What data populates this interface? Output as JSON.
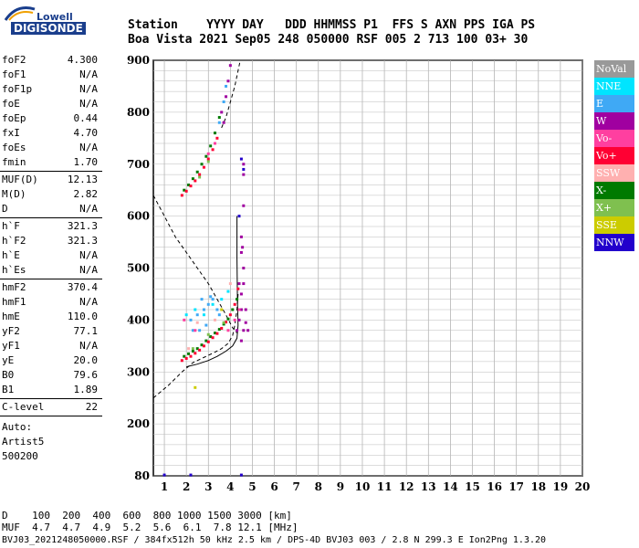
{
  "logo": {
    "top": "Lowell",
    "bottom": "DIGISONDE"
  },
  "header": {
    "line1": "Station    YYYY DAY   DDD HHMMSS P1  FFS S AXN PPS IGA PS",
    "line2": "Boa Vista 2021 Sep05 248 050000 RSF 005 2 713 100 03+ 30"
  },
  "params": [
    {
      "name": "foF2",
      "value": "4.300"
    },
    {
      "name": "foF1",
      "value": "N/A"
    },
    {
      "name": "foF1p",
      "value": "N/A"
    },
    {
      "name": "foE",
      "value": "N/A"
    },
    {
      "name": "foEp",
      "value": "0.44"
    },
    {
      "name": "fxI",
      "value": "4.70"
    },
    {
      "name": "foEs",
      "value": "N/A"
    },
    {
      "name": "fmin",
      "value": "1.70"
    },
    {
      "sep": true
    },
    {
      "name": "MUF(D)",
      "value": "12.13"
    },
    {
      "name": "M(D)",
      "value": "2.82"
    },
    {
      "name": "D",
      "value": "N/A"
    },
    {
      "sep": true
    },
    {
      "name": "h`F",
      "value": "321.3"
    },
    {
      "name": "h`F2",
      "value": "321.3"
    },
    {
      "name": "h`E",
      "value": "N/A"
    },
    {
      "name": "h`Es",
      "value": "N/A"
    },
    {
      "sep": true
    },
    {
      "name": "hmF2",
      "value": "370.4"
    },
    {
      "name": "hmF1",
      "value": "N/A"
    },
    {
      "name": "hmE",
      "value": "110.0"
    },
    {
      "name": "yF2",
      "value": "77.1"
    },
    {
      "name": "yF1",
      "value": "N/A"
    },
    {
      "name": "yE",
      "value": "20.0"
    },
    {
      "name": "B0",
      "value": "79.6"
    },
    {
      "name": "B1",
      "value": "1.89"
    },
    {
      "sep": true
    },
    {
      "name": "C-level",
      "value": "22"
    },
    {
      "sep": true
    }
  ],
  "auto": {
    "line1": "Auto:",
    "line2": "Artist5",
    "line3": "500200"
  },
  "legend": [
    {
      "label": "NoVal",
      "color": "#999999"
    },
    {
      "label": "NNE",
      "color": "#00e5ff"
    },
    {
      "label": "E",
      "color": "#3fa9f5"
    },
    {
      "label": "W",
      "color": "#a000a0"
    },
    {
      "label": "Vo-",
      "color": "#ff3fa0"
    },
    {
      "label": "Vo+",
      "color": "#ff0033"
    },
    {
      "label": "SSW",
      "color": "#ffb0b0"
    },
    {
      "label": "X-",
      "color": "#007a00"
    },
    {
      "label": "X+",
      "color": "#7fc04f"
    },
    {
      "label": "SSE",
      "color": "#cccc00"
    },
    {
      "label": "NNW",
      "color": "#2200cc"
    }
  ],
  "muf_table": {
    "line1": "D    100  200  400  600  800 1000 1500 3000 [km]",
    "line2": "MUF  4.7  4.7  4.9  5.2  5.6  6.1  7.8 12.1 [MHz]"
  },
  "footer": "BVJ03_2021248050000.RSF / 384fx512h 50 kHz 2.5 km / DPS-4D BVJ03 003 / 2.8 N 299.3 E Ion2Png 1.3.20",
  "chart_data": {
    "type": "scatter",
    "xlim": [
      0.5,
      20
    ],
    "ylim": [
      80,
      900
    ],
    "xticks": [
      1,
      2,
      3,
      4,
      5,
      6,
      7,
      8,
      9,
      10,
      11,
      12,
      13,
      14,
      15,
      16,
      17,
      18,
      19,
      20
    ],
    "yticks": [
      80,
      200,
      300,
      400,
      500,
      600,
      700,
      800,
      900
    ],
    "grid": true,
    "series": [
      {
        "name": "X-",
        "color": "#007a00",
        "points": [
          [
            1.9,
            330
          ],
          [
            2.1,
            335
          ],
          [
            2.3,
            340
          ],
          [
            2.5,
            345
          ],
          [
            2.7,
            352
          ],
          [
            2.9,
            360
          ],
          [
            3.1,
            368
          ],
          [
            3.3,
            375
          ],
          [
            3.5,
            382
          ],
          [
            3.7,
            392
          ],
          [
            3.9,
            402
          ],
          [
            4.1,
            420
          ],
          [
            4.3,
            440
          ],
          [
            1.9,
            650
          ],
          [
            2.1,
            660
          ],
          [
            2.3,
            672
          ],
          [
            2.5,
            685
          ],
          [
            2.7,
            700
          ],
          [
            2.9,
            715
          ],
          [
            3.1,
            735
          ],
          [
            3.3,
            760
          ],
          [
            3.5,
            790
          ]
        ]
      },
      {
        "name": "Vo+",
        "color": "#ff0033",
        "points": [
          [
            1.8,
            322
          ],
          [
            2.0,
            326
          ],
          [
            2.2,
            330
          ],
          [
            2.4,
            336
          ],
          [
            2.6,
            342
          ],
          [
            2.8,
            350
          ],
          [
            3.0,
            358
          ],
          [
            3.2,
            366
          ],
          [
            3.4,
            374
          ],
          [
            3.6,
            384
          ],
          [
            3.8,
            396
          ],
          [
            4.0,
            410
          ],
          [
            4.2,
            430
          ],
          [
            4.35,
            460
          ],
          [
            1.8,
            640
          ],
          [
            2.0,
            648
          ],
          [
            2.2,
            658
          ],
          [
            2.4,
            668
          ],
          [
            2.6,
            680
          ],
          [
            2.8,
            694
          ],
          [
            3.0,
            710
          ],
          [
            3.2,
            728
          ],
          [
            3.4,
            750
          ]
        ]
      },
      {
        "name": "W",
        "color": "#a000a0",
        "points": [
          [
            4.3,
            380
          ],
          [
            4.4,
            400
          ],
          [
            4.5,
            420
          ],
          [
            4.5,
            450
          ],
          [
            4.6,
            470
          ],
          [
            4.6,
            500
          ],
          [
            4.55,
            540
          ],
          [
            4.6,
            380
          ],
          [
            4.7,
            395
          ],
          [
            4.7,
            420
          ],
          [
            4.5,
            360
          ],
          [
            4.8,
            380
          ],
          [
            4.4,
            470
          ],
          [
            4.5,
            560
          ],
          [
            3.6,
            800
          ],
          [
            3.8,
            830
          ],
          [
            3.9,
            860
          ],
          [
            4.0,
            890
          ],
          [
            3.7,
            780
          ],
          [
            4.6,
            700
          ],
          [
            4.6,
            680
          ],
          [
            4.6,
            620
          ],
          [
            4.5,
            530
          ]
        ]
      },
      {
        "name": "E",
        "color": "#3fa9f5",
        "points": [
          [
            2.2,
            400
          ],
          [
            2.5,
            410
          ],
          [
            2.8,
            420
          ],
          [
            3.0,
            430
          ],
          [
            3.2,
            440
          ],
          [
            2.6,
            380
          ],
          [
            2.9,
            390
          ],
          [
            3.4,
            420
          ],
          [
            2.3,
            380
          ],
          [
            3.1,
            445
          ],
          [
            3.5,
            410
          ],
          [
            2.7,
            440
          ],
          [
            3.7,
            820
          ],
          [
            3.5,
            780
          ],
          [
            3.8,
            850
          ]
        ]
      },
      {
        "name": "Vo-",
        "color": "#ff3fa0",
        "points": [
          [
            1.9,
            400
          ],
          [
            2.4,
            380
          ],
          [
            3.9,
            380
          ],
          [
            4.2,
            400
          ],
          [
            4.4,
            420
          ],
          [
            3.0,
            720
          ],
          [
            3.3,
            740
          ]
        ]
      },
      {
        "name": "NNE",
        "color": "#00e5ff",
        "points": [
          [
            2.0,
            410
          ],
          [
            2.4,
            420
          ],
          [
            2.8,
            410
          ],
          [
            3.2,
            430
          ],
          [
            3.6,
            440
          ],
          [
            3.9,
            455
          ]
        ]
      },
      {
        "name": "SSW",
        "color": "#ffb0b0",
        "points": [
          [
            2.1,
            345
          ],
          [
            2.5,
            395
          ],
          [
            3.3,
            400
          ],
          [
            4.0,
            470
          ]
        ]
      },
      {
        "name": "NNW",
        "color": "#2200cc",
        "points": [
          [
            4.5,
            710
          ],
          [
            4.6,
            690
          ],
          [
            4.4,
            600
          ],
          [
            1.0,
            82
          ],
          [
            2.2,
            82
          ],
          [
            4.5,
            82
          ]
        ]
      },
      {
        "name": "X+",
        "color": "#7fc04f",
        "points": [
          [
            2.3,
            345
          ],
          [
            3.0,
            372
          ],
          [
            3.7,
            395
          ],
          [
            2.6,
            675
          ],
          [
            3.0,
            705
          ]
        ]
      },
      {
        "name": "SSE",
        "color": "#cccc00",
        "points": [
          [
            2.4,
            270
          ],
          [
            3.6,
            420
          ]
        ]
      }
    ],
    "profile_solid": [
      [
        2.0,
        310
      ],
      [
        2.5,
        315
      ],
      [
        3.0,
        322
      ],
      [
        3.4,
        330
      ],
      [
        3.8,
        340
      ],
      [
        4.1,
        350
      ],
      [
        4.3,
        365
      ],
      [
        4.35,
        390
      ],
      [
        4.32,
        440
      ],
      [
        4.3,
        520
      ],
      [
        4.3,
        600
      ]
    ],
    "profile_dashed": [
      [
        0.5,
        250
      ],
      [
        1.2,
        275
      ],
      [
        1.8,
        300
      ],
      [
        2.3,
        318
      ],
      [
        2.9,
        330
      ],
      [
        3.3,
        338
      ],
      [
        3.6,
        345
      ],
      [
        3.9,
        355
      ],
      [
        4.1,
        370
      ],
      [
        4.2,
        390
      ],
      [
        4.3,
        420
      ],
      [
        4.35,
        450
      ]
    ],
    "profile_dashed_upper": [
      [
        0.5,
        640
      ],
      [
        1.0,
        600
      ],
      [
        1.5,
        560
      ],
      [
        2.0,
        530
      ],
      [
        2.5,
        500
      ],
      [
        3.0,
        470
      ],
      [
        3.4,
        440
      ],
      [
        3.8,
        410
      ],
      [
        4.1,
        385
      ],
      [
        4.3,
        375
      ]
    ],
    "trace_dashed_upper": [
      [
        3.6,
        770
      ],
      [
        3.8,
        790
      ],
      [
        4.0,
        820
      ],
      [
        4.2,
        850
      ],
      [
        4.3,
        870
      ],
      [
        4.4,
        890
      ],
      [
        4.45,
        900
      ]
    ]
  }
}
